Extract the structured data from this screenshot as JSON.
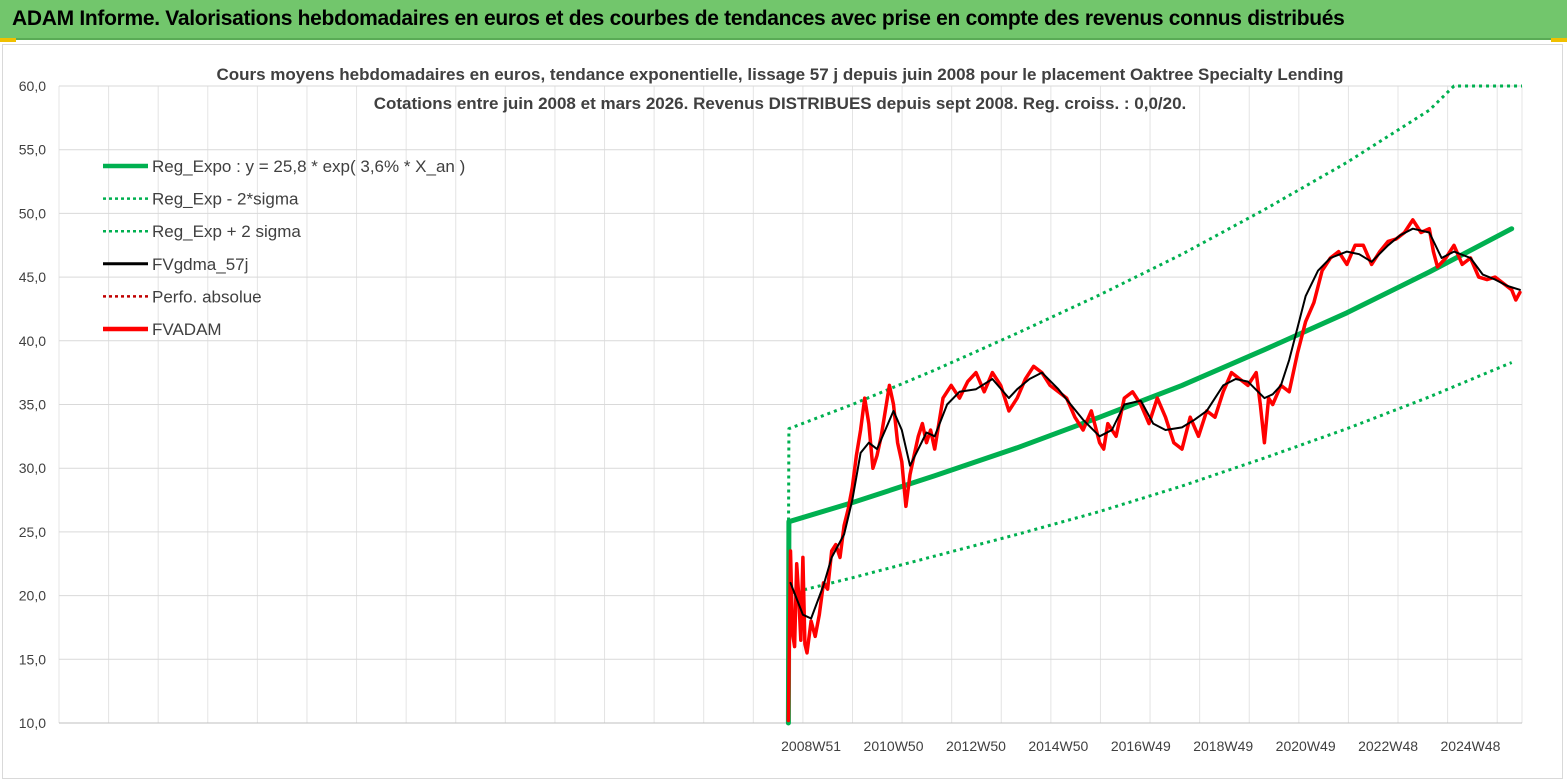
{
  "header": {
    "title": "ADAM Informe. Valorisations hebdomadaires en euros et des courbes de tendances avec prise en compte des revenus connus distribués"
  },
  "colors": {
    "header_bg": "#72c66c",
    "reg_expo": "#00b050",
    "sigma_bands": "#00b050",
    "fvgdma": "#000000",
    "perfo": "#c00000",
    "fvadam": "#ff0000",
    "grid": "#d9d9d9"
  },
  "chart_data": {
    "type": "line",
    "title_line1": "Cours moyens hebdomadaires en euros, tendance exponentielle, lissage 57 j depuis juin 2008 pour le placement Oaktree Specialty Lending",
    "title_line2": "Cotations entre juin 2008 et mars 2026. Revenus DISTRIBUES depuis sept 2008. Reg. croiss. : 0,0/20.",
    "xlabel": "",
    "ylabel": "",
    "ylim": [
      10,
      60
    ],
    "yticks": [
      10,
      15,
      20,
      25,
      30,
      35,
      40,
      45,
      50,
      55,
      60
    ],
    "ytick_labels": [
      "10,0",
      "15,0",
      "20,0",
      "25,0",
      "30,0",
      "35,0",
      "40,0",
      "45,0",
      "50,0",
      "55,0",
      "60,0"
    ],
    "xlim": [
      1990.75,
      2026.25
    ],
    "xticks": [
      {
        "x": 2009.0,
        "label": "2008W51"
      },
      {
        "x": 2011.0,
        "label": "2010W50"
      },
      {
        "x": 2013.0,
        "label": "2012W50"
      },
      {
        "x": 2015.0,
        "label": "2014W50"
      },
      {
        "x": 2017.0,
        "label": "2016W49"
      },
      {
        "x": 2019.0,
        "label": "2018W49"
      },
      {
        "x": 2021.0,
        "label": "2020W49"
      },
      {
        "x": 2023.0,
        "label": "2022W48"
      },
      {
        "x": 2025.0,
        "label": "2024W48"
      }
    ],
    "grid": true,
    "legend_position": "top-left",
    "series": [
      {
        "name": "Reg_Expo : y = 25,8 * exp( 3,6% *  X_an )",
        "style": "solid-thick",
        "color": "#00b050",
        "x": [
          2008.45,
          2008.46,
          2010,
          2012,
          2014,
          2016,
          2018,
          2020,
          2022,
          2024,
          2026
        ],
        "y": [
          10.0,
          25.8,
          27.3,
          29.4,
          31.6,
          34.0,
          36.5,
          39.3,
          42.2,
          45.4,
          48.8
        ]
      },
      {
        "name": "Reg_Exp - 2*sigma",
        "style": "dotted",
        "color": "#00b050",
        "x": [
          2008.5,
          2010,
          2012,
          2014,
          2016,
          2018,
          2020,
          2022,
          2024,
          2026
        ],
        "y": [
          20.2,
          21.4,
          23.1,
          24.8,
          26.6,
          28.6,
          30.8,
          33.1,
          35.6,
          38.3
        ]
      },
      {
        "name": "Reg_Exp + 2 sigma",
        "style": "dotted",
        "color": "#00b050",
        "x": [
          2008.45,
          2008.46,
          2010,
          2012,
          2014,
          2016,
          2018,
          2020,
          2022,
          2024,
          2024.6,
          2026.25
        ],
        "y": [
          22.6,
          33.1,
          35.0,
          37.7,
          40.6,
          43.6,
          46.8,
          50.3,
          54.0,
          58.1,
          60.0,
          60.0
        ]
      },
      {
        "name": "FVgdma_57j",
        "style": "solid",
        "color": "#000000",
        "x": [
          2008.5,
          2008.8,
          2009.0,
          2009.3,
          2009.5,
          2009.8,
          2010.0,
          2010.2,
          2010.4,
          2010.6,
          2010.8,
          2011.0,
          2011.2,
          2011.4,
          2011.6,
          2011.8,
          2012.0,
          2012.3,
          2012.6,
          2013.0,
          2013.4,
          2013.8,
          2014.0,
          2014.3,
          2014.6,
          2015.0,
          2015.3,
          2015.6,
          2016.0,
          2016.3,
          2016.6,
          2017.0,
          2017.3,
          2017.6,
          2018.0,
          2018.3,
          2018.6,
          2019.0,
          2019.3,
          2019.6,
          2020.0,
          2020.2,
          2020.4,
          2020.6,
          2020.8,
          2021.0,
          2021.3,
          2021.6,
          2022.0,
          2022.3,
          2022.6,
          2023.0,
          2023.3,
          2023.6,
          2024.0,
          2024.3,
          2024.6,
          2025.0,
          2025.3,
          2025.6,
          2025.9,
          2026.2
        ],
        "y": [
          21.0,
          18.5,
          18.2,
          20.8,
          23.0,
          24.8,
          27.5,
          31.2,
          32.0,
          31.5,
          33.0,
          34.5,
          33.0,
          30.2,
          31.5,
          32.8,
          32.5,
          35.0,
          36.0,
          36.2,
          37.0,
          35.5,
          36.2,
          37.0,
          37.5,
          36.2,
          35.0,
          33.8,
          32.5,
          33.0,
          35.0,
          35.3,
          33.5,
          33.0,
          33.2,
          33.8,
          34.5,
          36.5,
          37.0,
          36.8,
          35.5,
          35.8,
          36.5,
          38.5,
          41.0,
          43.5,
          45.5,
          46.5,
          47.0,
          46.8,
          46.2,
          47.5,
          48.3,
          48.8,
          48.5,
          46.5,
          47.0,
          46.5,
          45.2,
          44.8,
          44.3,
          44.0
        ]
      },
      {
        "name": "Perfo. absolue",
        "style": "dotted",
        "color": "#c00000",
        "x": [],
        "y": []
      },
      {
        "name": "FVADAM",
        "style": "solid-thick",
        "color": "#ff0000",
        "x": [
          2008.45,
          2008.5,
          2008.55,
          2008.6,
          2008.65,
          2008.7,
          2008.75,
          2008.8,
          2008.85,
          2008.9,
          2009.0,
          2009.1,
          2009.2,
          2009.3,
          2009.4,
          2009.5,
          2009.6,
          2009.7,
          2009.8,
          2009.9,
          2010.0,
          2010.1,
          2010.2,
          2010.3,
          2010.4,
          2010.5,
          2010.6,
          2010.7,
          2010.8,
          2010.9,
          2011.0,
          2011.1,
          2011.2,
          2011.3,
          2011.4,
          2011.5,
          2011.6,
          2011.7,
          2011.8,
          2011.9,
          2012.0,
          2012.2,
          2012.4,
          2012.6,
          2012.8,
          2013.0,
          2013.2,
          2013.4,
          2013.6,
          2013.8,
          2014.0,
          2014.2,
          2014.4,
          2014.6,
          2014.8,
          2015.0,
          2015.2,
          2015.4,
          2015.6,
          2015.8,
          2016.0,
          2016.1,
          2016.2,
          2016.4,
          2016.6,
          2016.8,
          2017.0,
          2017.2,
          2017.4,
          2017.6,
          2017.8,
          2018.0,
          2018.2,
          2018.4,
          2018.6,
          2018.8,
          2019.0,
          2019.2,
          2019.4,
          2019.6,
          2019.8,
          2019.9,
          2020.0,
          2020.1,
          2020.2,
          2020.4,
          2020.6,
          2020.8,
          2021.0,
          2021.2,
          2021.4,
          2021.6,
          2021.8,
          2022.0,
          2022.2,
          2022.4,
          2022.6,
          2022.8,
          2023.0,
          2023.2,
          2023.4,
          2023.6,
          2023.8,
          2024.0,
          2024.1,
          2024.2,
          2024.4,
          2024.6,
          2024.8,
          2025.0,
          2025.2,
          2025.4,
          2025.6,
          2025.8,
          2026.0,
          2026.1,
          2026.2
        ],
        "y": [
          10.2,
          23.5,
          17.0,
          16.0,
          22.5,
          20.0,
          16.5,
          23.0,
          16.2,
          15.5,
          18.0,
          16.8,
          18.5,
          21.0,
          20.5,
          23.5,
          24.0,
          23.0,
          25.5,
          26.8,
          28.5,
          31.0,
          33.0,
          35.5,
          33.5,
          30.0,
          31.0,
          32.5,
          34.5,
          36.5,
          35.0,
          32.0,
          30.5,
          27.0,
          29.5,
          31.0,
          32.5,
          33.5,
          32.0,
          33.0,
          31.5,
          35.5,
          36.5,
          35.5,
          36.8,
          37.5,
          36.0,
          37.5,
          36.5,
          34.5,
          35.5,
          37.0,
          38.0,
          37.5,
          36.5,
          36.0,
          35.5,
          34.0,
          33.0,
          34.5,
          32.0,
          31.5,
          33.5,
          32.5,
          35.5,
          36.0,
          35.0,
          33.5,
          35.5,
          34.0,
          32.0,
          31.5,
          34.0,
          32.5,
          34.5,
          34.0,
          36.0,
          37.5,
          37.0,
          36.5,
          37.5,
          35.0,
          32.0,
          35.5,
          35.0,
          36.5,
          36.0,
          39.0,
          41.5,
          43.0,
          45.5,
          46.5,
          47.0,
          46.0,
          47.5,
          47.5,
          46.0,
          47.0,
          47.8,
          48.0,
          48.5,
          49.5,
          48.5,
          48.8,
          47.0,
          45.8,
          46.5,
          47.5,
          46.0,
          46.5,
          45.0,
          44.8,
          45.0,
          44.5,
          44.0,
          43.2,
          43.8
        ]
      }
    ]
  }
}
